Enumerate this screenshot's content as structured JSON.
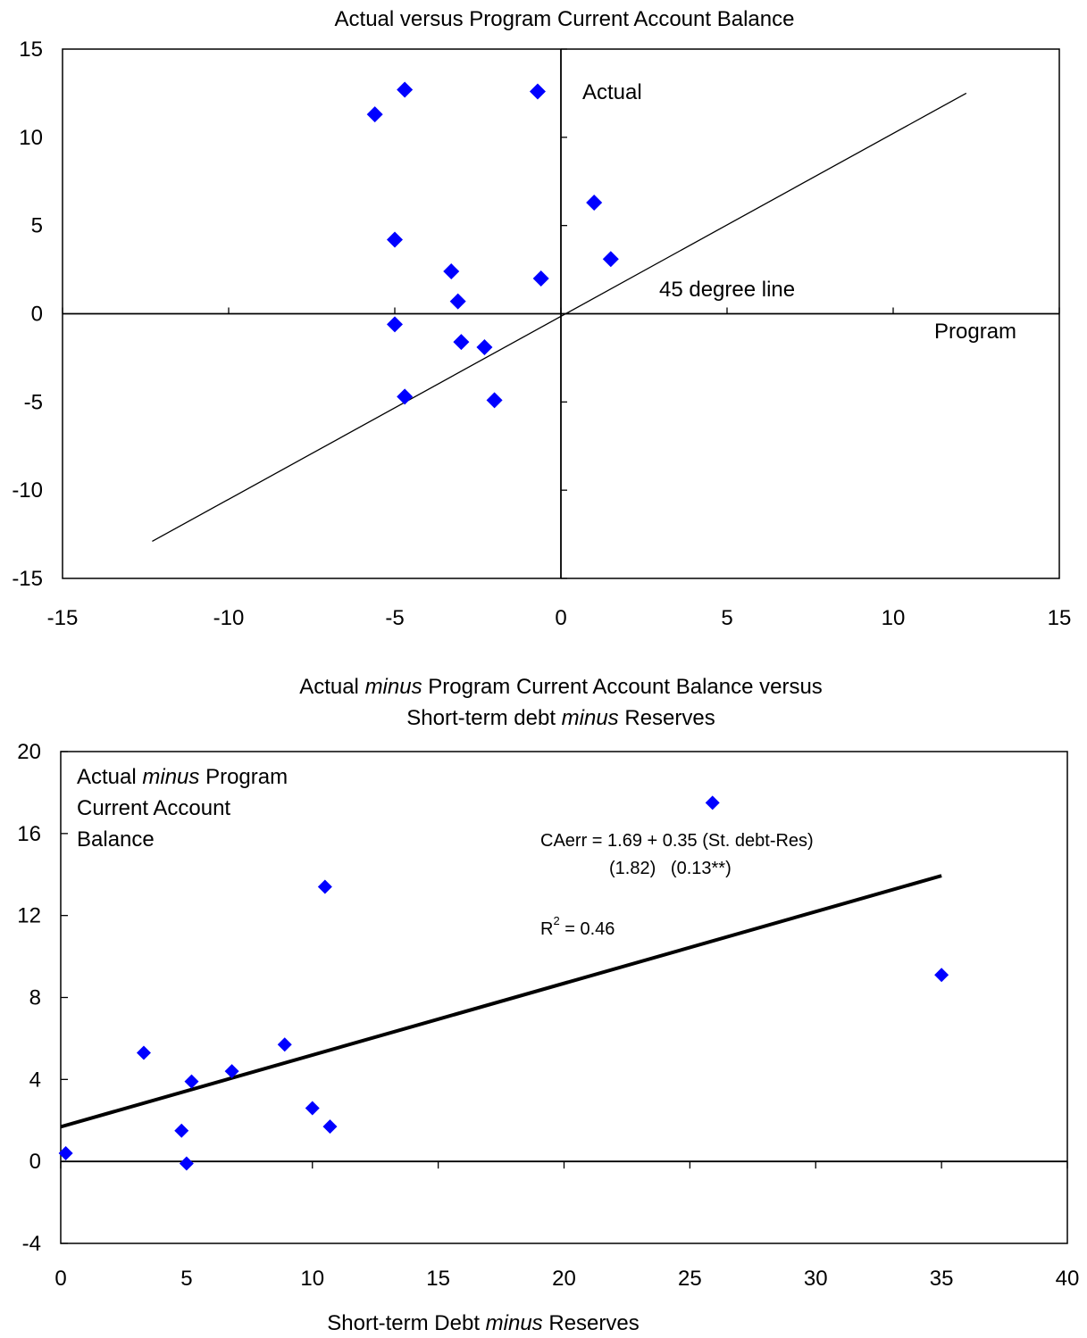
{
  "chart_data": [
    {
      "type": "scatter",
      "title": "Actual versus Program Current Account Balance",
      "xlim": [
        -15,
        15
      ],
      "ylim": [
        -15,
        15
      ],
      "xticks": [
        "-15",
        "-10",
        "-5",
        "0",
        "5",
        "10",
        "15"
      ],
      "yticks": [
        "15",
        "10",
        "5",
        "0",
        "-5",
        "-10",
        "-15"
      ],
      "grid": false,
      "annotations": {
        "y_axis_label": "Actual",
        "x_axis_label": "Program",
        "line_label": "45 degree line"
      },
      "reference_line": {
        "from": [
          -12.3,
          -12.9
        ],
        "to": [
          12.2,
          12.5
        ]
      },
      "marker_color": "#0000ff",
      "points": [
        {
          "x": -4.7,
          "y": 12.7
        },
        {
          "x": -0.7,
          "y": 12.6
        },
        {
          "x": -5.6,
          "y": 11.3
        },
        {
          "x": 1.0,
          "y": 6.3
        },
        {
          "x": -5.0,
          "y": 4.2
        },
        {
          "x": 1.5,
          "y": 3.1
        },
        {
          "x": -3.3,
          "y": 2.4
        },
        {
          "x": -0.6,
          "y": 2.0
        },
        {
          "x": -3.1,
          "y": 0.7
        },
        {
          "x": -5.0,
          "y": -0.6
        },
        {
          "x": -3.0,
          "y": -1.6
        },
        {
          "x": -2.3,
          "y": -1.9
        },
        {
          "x": -4.7,
          "y": -4.7
        },
        {
          "x": -2.0,
          "y": -4.9
        }
      ]
    },
    {
      "type": "scatter",
      "title_line1": [
        "Actual ",
        "minus",
        " Program Current Account Balance versus"
      ],
      "title_line2": [
        "Short-term debt ",
        "minus",
        " Reserves"
      ],
      "xlabel": [
        "Short-term Debt ",
        "minus",
        " Reserves"
      ],
      "xlim": [
        0,
        40
      ],
      "ylim": [
        -4,
        20
      ],
      "xticks": [
        "0",
        "5",
        "10",
        "15",
        "20",
        "25",
        "30",
        "35",
        "40"
      ],
      "yticks": [
        "20",
        "16",
        "12",
        "8",
        "4",
        "0",
        "-4"
      ],
      "grid": false,
      "inset_label": {
        "line1": [
          "Actual ",
          "minus",
          " Program"
        ],
        "line2": "Current Account",
        "line3": "Balance"
      },
      "equation": {
        "line1": "CAerr = 1.69 + 0.35 (St. debt-Res)",
        "line2": "(1.82)   (0.13**)",
        "r2_prefix": "R",
        "r2_sup": "2",
        "r2_value": " = 0.46"
      },
      "regression": {
        "intercept": 1.69,
        "slope": 0.35,
        "x_range": [
          0,
          35
        ]
      },
      "marker_color": "#0000ff",
      "points": [
        {
          "x": 0.2,
          "y": 0.4
        },
        {
          "x": 3.3,
          "y": 5.3
        },
        {
          "x": 4.8,
          "y": 1.5
        },
        {
          "x": 5.0,
          "y": -0.1
        },
        {
          "x": 5.2,
          "y": 3.9
        },
        {
          "x": 6.8,
          "y": 4.4
        },
        {
          "x": 8.9,
          "y": 5.7
        },
        {
          "x": 10.0,
          "y": 2.6
        },
        {
          "x": 10.5,
          "y": 13.4
        },
        {
          "x": 10.7,
          "y": 1.7
        },
        {
          "x": 25.9,
          "y": 17.5
        },
        {
          "x": 35.0,
          "y": 9.1
        }
      ]
    }
  ]
}
